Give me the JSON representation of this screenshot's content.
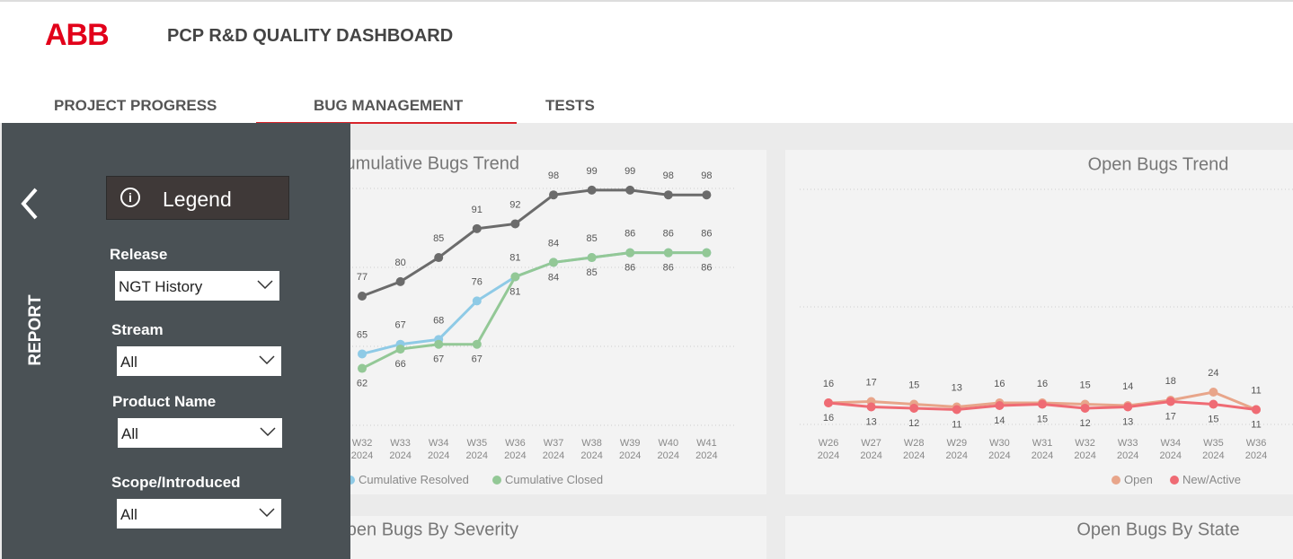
{
  "header": {
    "logo": "ABB",
    "title": "PCP R&D QUALITY DASHBOARD"
  },
  "tabs": [
    "PROJECT PROGRESS",
    "BUG MANAGEMENT",
    "TESTS"
  ],
  "active_tab": 1,
  "sidebar": {
    "label": "REPORT",
    "legend_button": "Legend",
    "filters": [
      {
        "label": "Release",
        "value": "NGT History"
      },
      {
        "label": "Stream",
        "value": "All"
      },
      {
        "label": "Product Name",
        "value": "All"
      },
      {
        "label": "Scope/Introduced",
        "value": "All"
      }
    ]
  },
  "charts": [
    {
      "type": "line",
      "title": "Cumulative Bugs Trend",
      "categories": [
        "W32",
        "W33",
        "W34",
        "W35",
        "W36",
        "W37",
        "W38",
        "W39",
        "W40",
        "W41"
      ],
      "year": "2024",
      "ylim": [
        50,
        104
      ],
      "series": [
        {
          "color": "#6b6b6b",
          "label_position": "above",
          "values": [
            77,
            80,
            85,
            91,
            92,
            98,
            99,
            99,
            98,
            98
          ]
        },
        {
          "name": "Cumulative Resolved",
          "color": "#8ecae6",
          "label_position": "above",
          "values": [
            65,
            67,
            68,
            76,
            81,
            84,
            85,
            86,
            86,
            86
          ]
        },
        {
          "name": "Cumulative Closed",
          "color": "#93c896",
          "label_position": "below",
          "values": [
            62,
            66,
            67,
            67,
            81,
            84,
            85,
            86,
            86,
            86
          ]
        }
      ]
    },
    {
      "type": "line",
      "title": "Open Bugs Trend",
      "categories": [
        "W26",
        "W27",
        "W28",
        "W29",
        "W30",
        "W31",
        "W32",
        "W33",
        "W34",
        "W35",
        "W36"
      ],
      "year": "2024",
      "ylim": [
        0,
        190
      ],
      "series": [
        {
          "name": "Open",
          "color": "#e8a58a",
          "label_position": "above",
          "values": [
            16,
            17,
            15,
            13,
            16,
            16,
            15,
            14,
            18,
            24,
            11
          ]
        },
        {
          "name": "New/Active",
          "color": "#ef6b74",
          "label_position": "below",
          "values": [
            16,
            13,
            12,
            11,
            14,
            15,
            12,
            13,
            17,
            15,
            11
          ]
        }
      ]
    },
    {
      "type": "placeholder",
      "title": "Open Bugs By Severity"
    },
    {
      "type": "placeholder",
      "title": "Open Bugs By State"
    }
  ]
}
